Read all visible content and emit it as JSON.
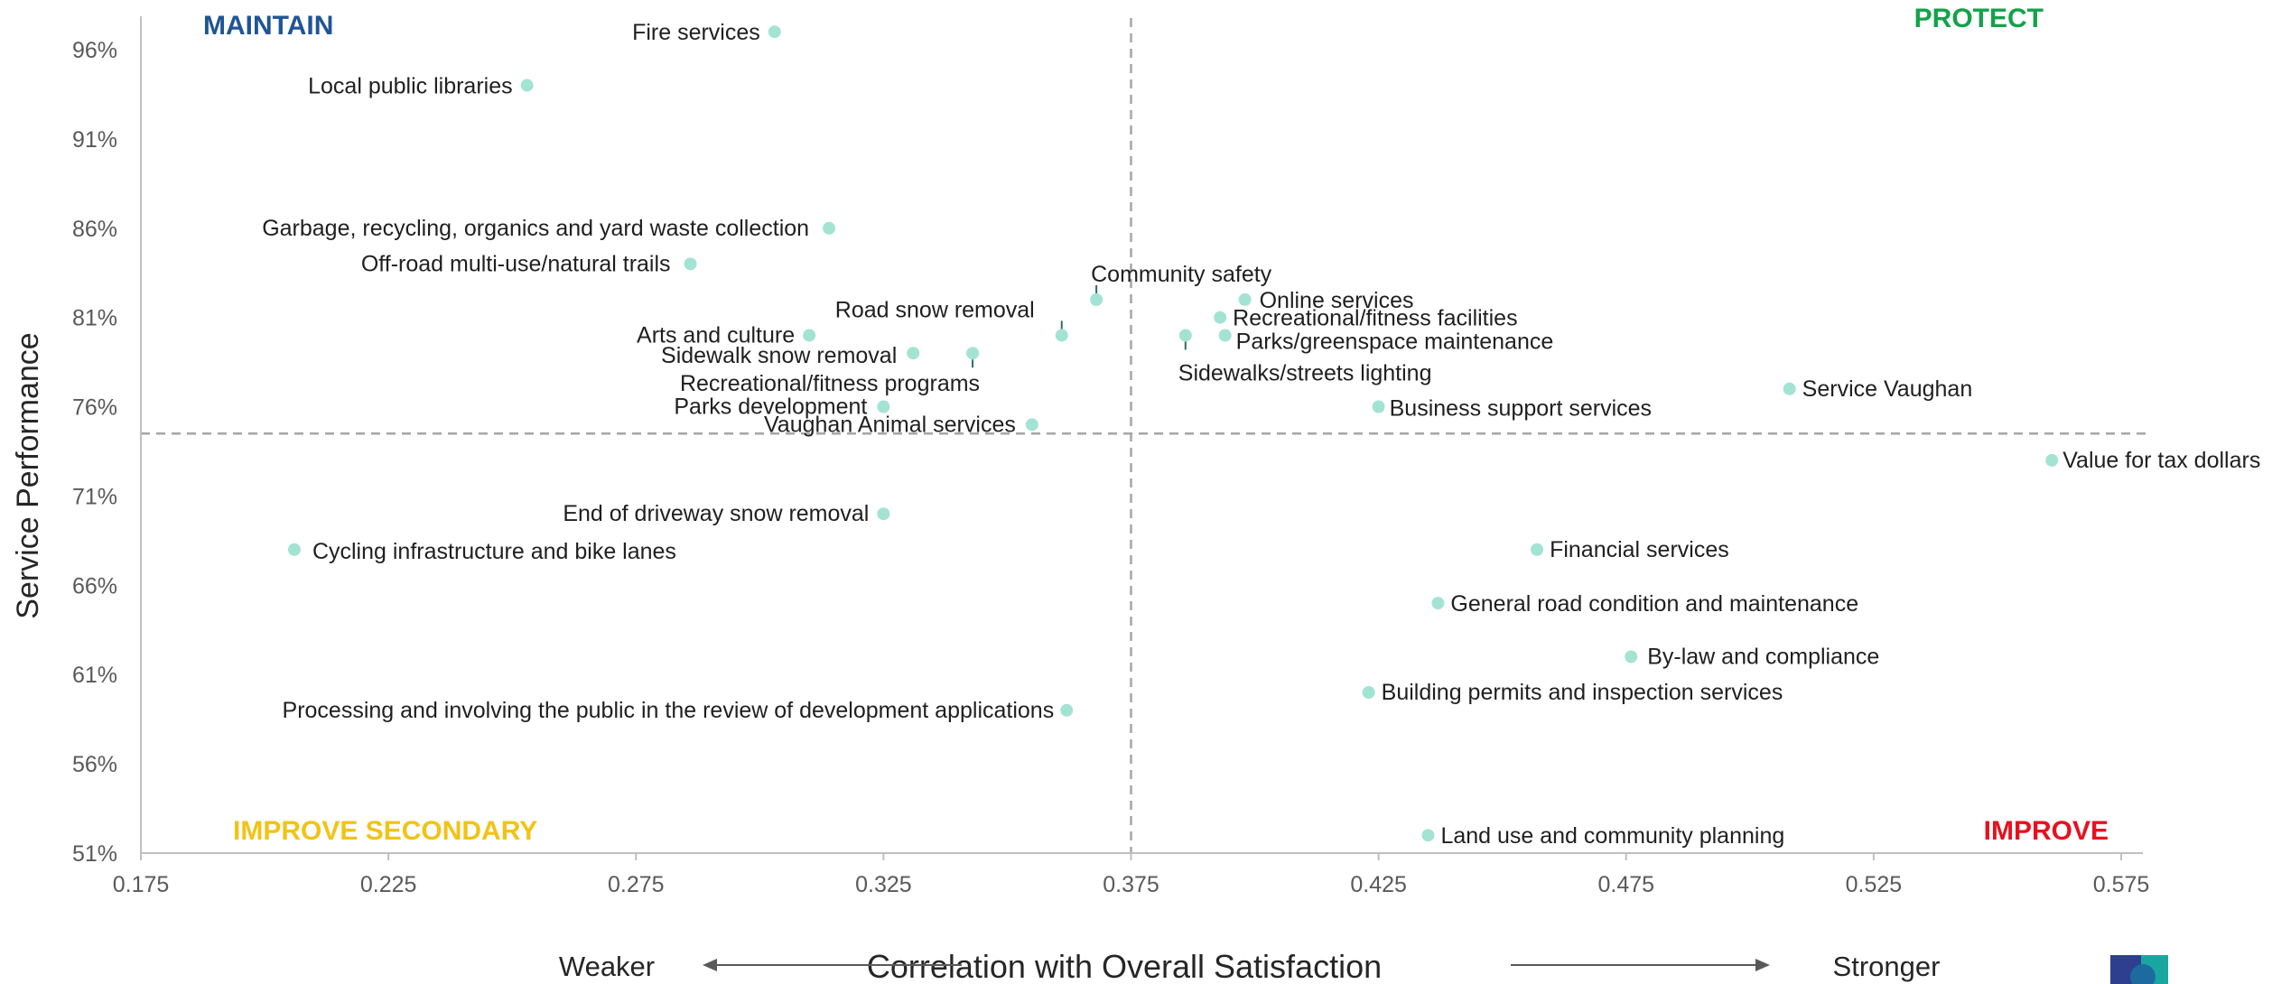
{
  "chart_data": {
    "type": "scatter",
    "x_axis": {
      "title": "Correlation with Overall Satisfaction",
      "left_label": "Weaker",
      "right_label": "Stronger",
      "range": [
        0.175,
        0.58
      ],
      "ticks": [
        "0.175",
        "0.225",
        "0.275",
        "0.325",
        "0.375",
        "0.425",
        "0.475",
        "0.525",
        "0.575"
      ]
    },
    "y_axis": {
      "title": "Service Performance",
      "range": [
        51,
        97.5
      ],
      "ticks": [
        "51%",
        "56%",
        "61%",
        "66%",
        "71%",
        "76%",
        "81%",
        "86%",
        "91%",
        "96%"
      ]
    },
    "reference_lines": {
      "x": 0.375,
      "y": 74.5
    },
    "quadrants": [
      {
        "label": "MAINTAIN",
        "color": "#1f5597"
      },
      {
        "label": "PROTECT",
        "color": "#13a24a"
      },
      {
        "label": "IMPROVE SECONDARY",
        "color": "#f2c316"
      },
      {
        "label": "IMPROVE",
        "color": "#e8101d"
      }
    ],
    "marker_color": "#a3e3d4",
    "points": [
      {
        "label": "Fire services",
        "x": 0.303,
        "y": 97
      },
      {
        "label": "Local public libraries",
        "x": 0.253,
        "y": 94
      },
      {
        "label": "Garbage, recycling, organics and yard waste collection",
        "x": 0.314,
        "y": 86
      },
      {
        "label": "Off-road multi-use/natural trails",
        "x": 0.286,
        "y": 84
      },
      {
        "label": "Community safety",
        "x": 0.368,
        "y": 82
      },
      {
        "label": "Online services",
        "x": 0.398,
        "y": 82
      },
      {
        "label": "Recreational/fitness facilities",
        "x": 0.393,
        "y": 81
      },
      {
        "label": "Road snow removal",
        "x": 0.361,
        "y": 80
      },
      {
        "label": "Arts and culture",
        "x": 0.31,
        "y": 80
      },
      {
        "label": "Parks/greenspace maintenance",
        "x": 0.394,
        "y": 80
      },
      {
        "label": "Sidewalks/streets lighting",
        "x": 0.386,
        "y": 80
      },
      {
        "label": "Sidewalk snow removal",
        "x": 0.331,
        "y": 79
      },
      {
        "label": "Recreational/fitness programs",
        "x": 0.343,
        "y": 79
      },
      {
        "label": "Parks development",
        "x": 0.325,
        "y": 76
      },
      {
        "label": "Business support services",
        "x": 0.425,
        "y": 76
      },
      {
        "label": "Service Vaughan",
        "x": 0.508,
        "y": 77
      },
      {
        "label": "Vaughan Animal services",
        "x": 0.355,
        "y": 75
      },
      {
        "label": "Value for tax dollars",
        "x": 0.561,
        "y": 73
      },
      {
        "label": "End of driveway snow removal",
        "x": 0.325,
        "y": 70
      },
      {
        "label": "Cycling infrastructure and bike lanes",
        "x": 0.206,
        "y": 68
      },
      {
        "label": "Financial services",
        "x": 0.457,
        "y": 68
      },
      {
        "label": "General road condition and maintenance",
        "x": 0.437,
        "y": 65
      },
      {
        "label": "By-law and compliance",
        "x": 0.476,
        "y": 62
      },
      {
        "label": "Building permits and inspection services",
        "x": 0.423,
        "y": 60
      },
      {
        "label": "Processing and involving the public in the review of development applications",
        "x": 0.362,
        "y": 59
      },
      {
        "label": "Land use and community planning",
        "x": 0.435,
        "y": 52
      }
    ]
  }
}
